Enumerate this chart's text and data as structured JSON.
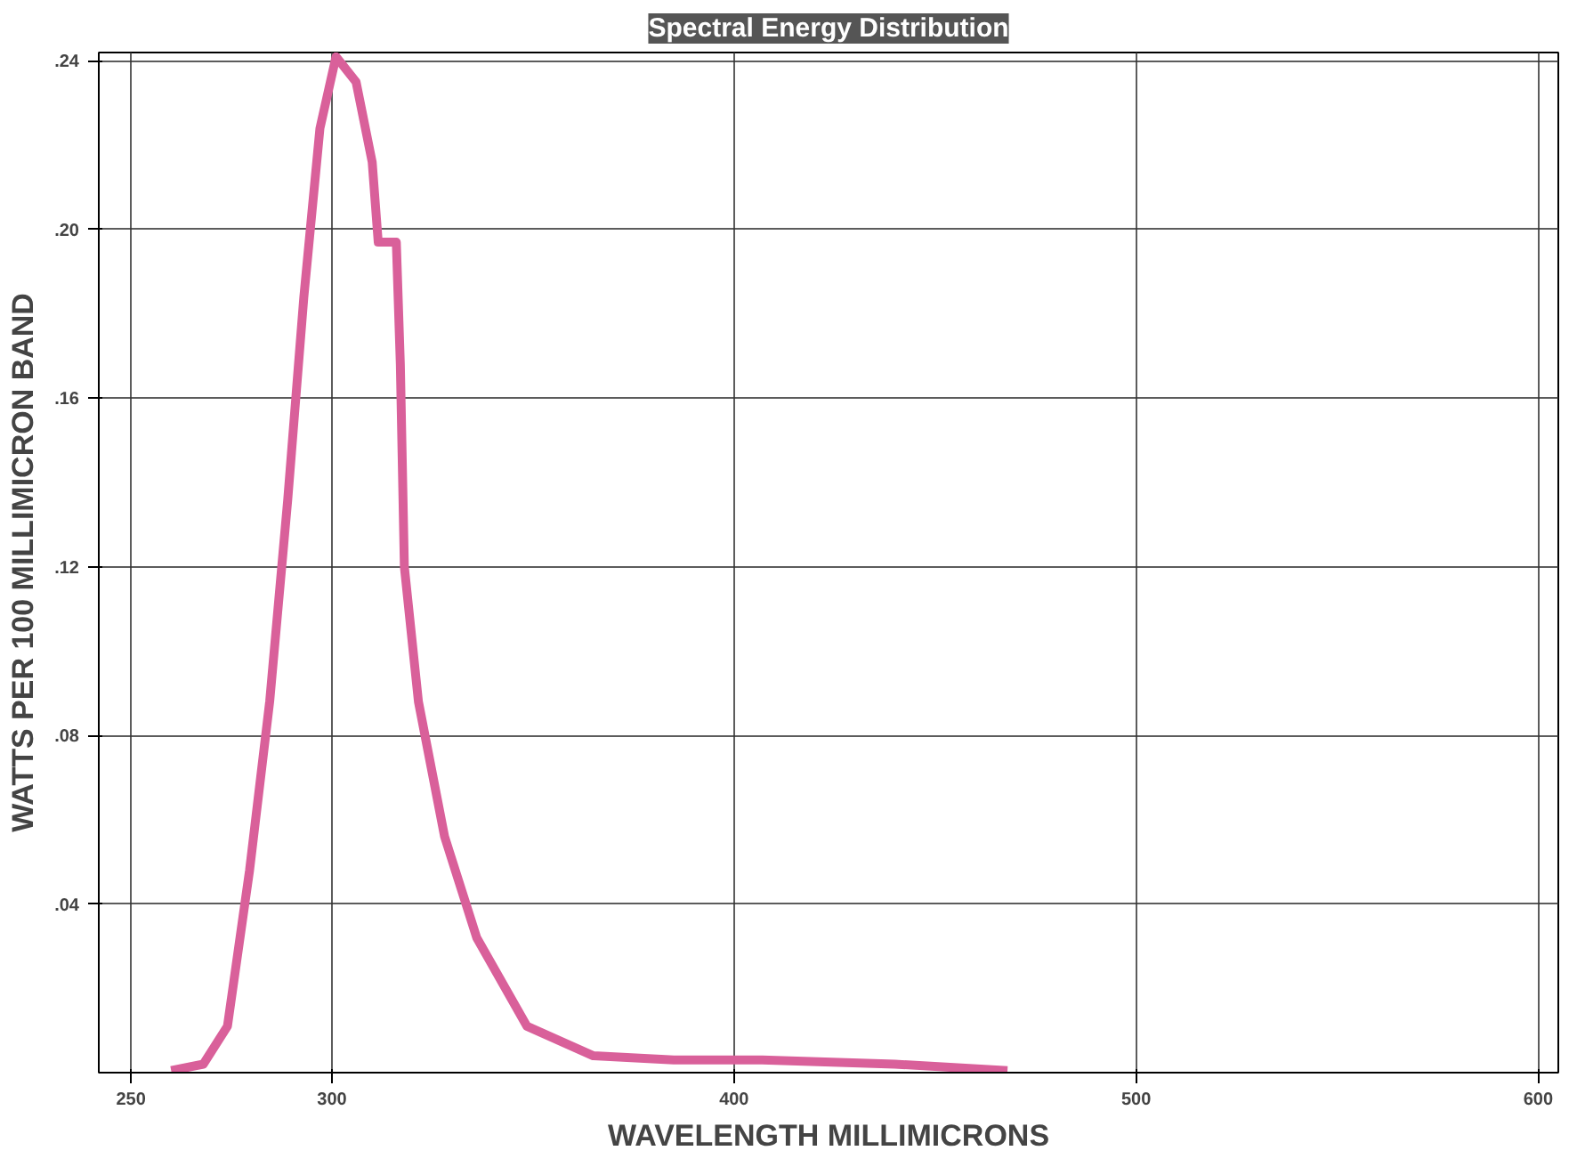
{
  "chart_data": {
    "type": "line",
    "title": "Spectral Energy Distribution",
    "xlabel": "WAVELENGTH MILLIMICRONS",
    "ylabel": "WATTS PER 100 MILLIMICRON BAND",
    "x": [
      260,
      268,
      274,
      279.5,
      284.5,
      289,
      293,
      297,
      301,
      306,
      310,
      311.5,
      316,
      317,
      318,
      321.5,
      328,
      336,
      348.5,
      365,
      385,
      407,
      440,
      468
    ],
    "series": [
      {
        "color": "#d9609a",
        "values": [
          0.0005,
          0.002,
          0.011,
          0.048,
          0.088,
          0.136,
          0.184,
          0.224,
          0.241,
          0.235,
          0.216,
          0.197,
          0.197,
          0.168,
          0.12,
          0.088,
          0.056,
          0.032,
          0.011,
          0.004,
          0.003,
          0.003,
          0.002,
          0.0005
        ]
      }
    ],
    "xlim": [
      242,
      605
    ],
    "ylim": [
      0,
      0.242
    ],
    "xticks": [
      250,
      300,
      400,
      500,
      600
    ],
    "yticks": [
      {
        "value": 0.04,
        "label": ".04"
      },
      {
        "value": 0.08,
        "label": ".08"
      },
      {
        "value": 0.12,
        "label": ".12"
      },
      {
        "value": 0.16,
        "label": ".16"
      },
      {
        "value": 0.2,
        "label": ".20"
      },
      {
        "value": 0.24,
        "label": ".24"
      }
    ],
    "grid": true,
    "marker": "none",
    "line_style": "solid"
  }
}
